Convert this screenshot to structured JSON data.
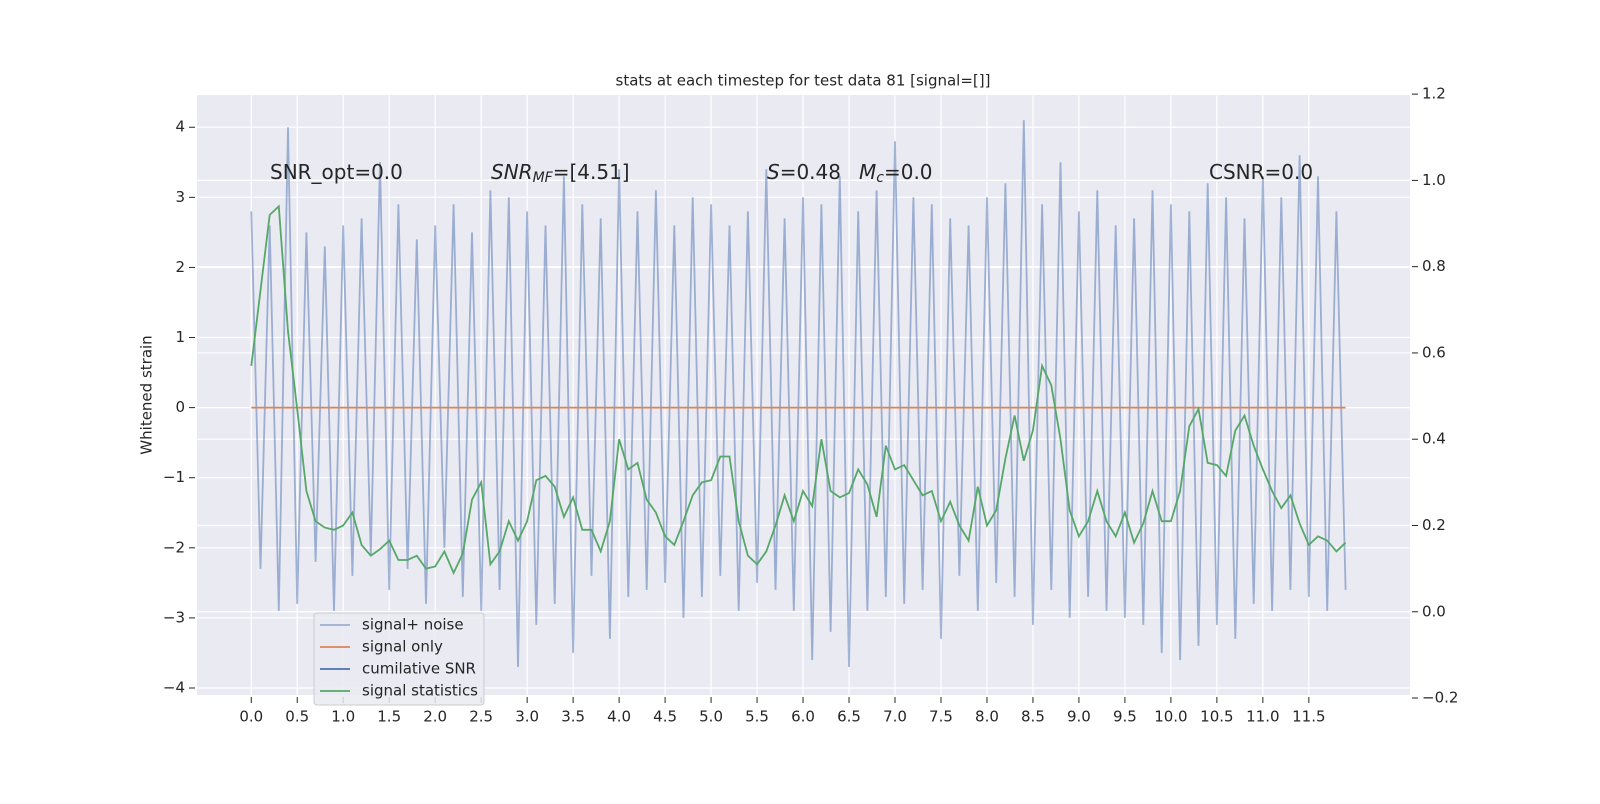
{
  "chart_data": {
    "type": "line",
    "title": "stats at each timestep for test data 81 [signal=[]]",
    "ylabel": "Whitened strain",
    "annotations": [
      {
        "main": "SNR_opt=0.0"
      },
      {
        "main": "SNR",
        "sub": "MF",
        "rest": "=[4.51]"
      },
      {
        "main": "S",
        "rest": "=0.48"
      },
      {
        "main": "M",
        "sub": "c",
        "rest": "=0.0"
      },
      {
        "main": "CSNR=0.0"
      }
    ],
    "x": [
      0,
      0.1,
      0.2,
      0.3,
      0.4,
      0.5,
      0.6,
      0.7,
      0.8,
      0.9,
      1,
      1.1,
      1.2,
      1.3,
      1.4,
      1.5,
      1.6,
      1.7,
      1.8,
      1.9,
      2,
      2.1,
      2.2,
      2.3,
      2.4,
      2.5,
      2.6,
      2.7,
      2.8,
      2.9,
      3,
      3.1,
      3.2,
      3.3,
      3.4,
      3.5,
      3.6,
      3.7,
      3.8,
      3.9,
      4,
      4.1,
      4.2,
      4.3,
      4.4,
      4.5,
      4.6,
      4.7,
      4.8,
      4.9,
      5,
      5.1,
      5.2,
      5.3,
      5.4,
      5.5,
      5.6,
      5.7,
      5.8,
      5.9,
      6,
      6.1,
      6.2,
      6.3,
      6.4,
      6.5,
      6.6,
      6.7,
      6.8,
      6.9,
      7,
      7.1,
      7.2,
      7.3,
      7.4,
      7.5,
      7.6,
      7.7,
      7.8,
      7.9,
      8,
      8.1,
      8.2,
      8.3,
      8.4,
      8.5,
      8.6,
      8.7,
      8.8,
      8.9,
      9,
      9.1,
      9.2,
      9.3,
      9.4,
      9.5,
      9.6,
      9.7,
      9.8,
      9.9,
      10,
      10.1,
      10.2,
      10.3,
      10.4,
      10.5,
      10.6,
      10.7,
      10.8,
      10.9,
      11,
      11.1,
      11.2,
      11.3,
      11.4,
      11.5,
      11.6,
      11.7,
      11.8,
      11.9
    ],
    "series": [
      {
        "name": "signal+ noise",
        "color": "#4c72b0",
        "alpha": 0.5,
        "values": [
          2.8,
          -2.3,
          2.6,
          -2.9,
          4.0,
          -2.8,
          2.5,
          -2.2,
          2.3,
          -2.9,
          2.6,
          -2.4,
          2.7,
          -2.1,
          3.5,
          -2.6,
          2.9,
          -2.3,
          2.4,
          -2.8,
          2.6,
          -2.0,
          2.9,
          -2.7,
          2.5,
          -2.9,
          3.1,
          -2.6,
          3.0,
          -3.7,
          2.8,
          -3.1,
          2.6,
          -2.8,
          3.3,
          -3.5,
          2.9,
          -2.4,
          2.7,
          -3.3,
          3.4,
          -2.7,
          2.8,
          -2.6,
          3.1,
          -2.5,
          2.6,
          -3.0,
          3.0,
          -2.7,
          2.9,
          -2.4,
          2.6,
          -2.9,
          2.8,
          -2.5,
          3.4,
          -2.6,
          2.7,
          -2.9,
          3.0,
          -3.6,
          2.9,
          -3.2,
          3.3,
          -3.7,
          2.8,
          -2.9,
          3.1,
          -2.7,
          3.8,
          -2.8,
          3.0,
          -2.6,
          2.9,
          -3.3,
          2.7,
          -2.4,
          2.6,
          -2.9,
          3.0,
          -2.5,
          3.2,
          -2.7,
          4.1,
          -3.1,
          2.9,
          -2.6,
          3.5,
          -3.0,
          2.8,
          -2.7,
          3.1,
          -2.9,
          2.6,
          -3.0,
          2.7,
          -3.1,
          3.1,
          -3.5,
          2.9,
          -3.6,
          2.8,
          -3.4,
          3.2,
          -3.1,
          3.0,
          -3.3,
          2.7,
          -2.8,
          3.3,
          -2.9,
          3.0,
          -2.6,
          3.6,
          -2.7,
          3.3,
          -2.9,
          2.8,
          -2.6
        ]
      },
      {
        "name": "signal only",
        "color": "#dd8452",
        "values": [
          0,
          0,
          0,
          0,
          0,
          0,
          0,
          0,
          0,
          0,
          0,
          0,
          0,
          0,
          0,
          0,
          0,
          0,
          0,
          0,
          0,
          0,
          0,
          0,
          0,
          0,
          0,
          0,
          0,
          0,
          0,
          0,
          0,
          0,
          0,
          0,
          0,
          0,
          0,
          0,
          0,
          0,
          0,
          0,
          0,
          0,
          0,
          0,
          0,
          0,
          0,
          0,
          0,
          0,
          0,
          0,
          0,
          0,
          0,
          0,
          0,
          0,
          0,
          0,
          0,
          0,
          0,
          0,
          0,
          0,
          0,
          0,
          0,
          0,
          0,
          0,
          0,
          0,
          0,
          0,
          0,
          0,
          0,
          0,
          0,
          0,
          0,
          0,
          0,
          0,
          0,
          0,
          0,
          0,
          0,
          0,
          0,
          0,
          0,
          0,
          0,
          0,
          0,
          0,
          0,
          0,
          0,
          0,
          0,
          0,
          0,
          0,
          0,
          0,
          0,
          0,
          0,
          0,
          0,
          0
        ]
      },
      {
        "name": "cumilative SNR",
        "color": "#4c72b0",
        "values": [
          null,
          null,
          null,
          null,
          null,
          null,
          null,
          null,
          null,
          null,
          null,
          null,
          null,
          null,
          null,
          null,
          null,
          null,
          null,
          null,
          null,
          null,
          null,
          null,
          null,
          null,
          null,
          null,
          null,
          null,
          null,
          null,
          null,
          null,
          null,
          null,
          null,
          null,
          null,
          null,
          null,
          null,
          null,
          null,
          null,
          null,
          null,
          null,
          null,
          null,
          null,
          null,
          null,
          null,
          null,
          null,
          null,
          null,
          null,
          null,
          null,
          null,
          null,
          null,
          null,
          null,
          null,
          null,
          null,
          null,
          null,
          null,
          null,
          null,
          null,
          null,
          null,
          null,
          null,
          null,
          null,
          null,
          null,
          null,
          null,
          null,
          null,
          null,
          null,
          null,
          null,
          null,
          null,
          null,
          null,
          null,
          null,
          null,
          null,
          null,
          null,
          null,
          null,
          null,
          null,
          null,
          null,
          null,
          null,
          null,
          null,
          null,
          null,
          null,
          null,
          null,
          null,
          null,
          null,
          null
        ]
      },
      {
        "name": "signal statistics",
        "color": "#55a868",
        "axis": "y2",
        "values": [
          0.57,
          0.745,
          0.92,
          0.94,
          0.65,
          0.47,
          0.28,
          0.21,
          0.195,
          0.19,
          0.2,
          0.23,
          0.155,
          0.13,
          0.145,
          0.165,
          0.12,
          0.12,
          0.13,
          0.1,
          0.105,
          0.14,
          0.09,
          0.135,
          0.26,
          0.3,
          0.11,
          0.14,
          0.21,
          0.165,
          0.21,
          0.305,
          0.315,
          0.29,
          0.22,
          0.265,
          0.19,
          0.19,
          0.14,
          0.21,
          0.4,
          0.33,
          0.345,
          0.26,
          0.23,
          0.175,
          0.155,
          0.21,
          0.27,
          0.3,
          0.305,
          0.36,
          0.36,
          0.21,
          0.13,
          0.11,
          0.14,
          0.2,
          0.27,
          0.21,
          0.28,
          0.245,
          0.4,
          0.28,
          0.265,
          0.275,
          0.33,
          0.295,
          0.22,
          0.385,
          0.33,
          0.34,
          0.305,
          0.27,
          0.28,
          0.21,
          0.255,
          0.2,
          0.165,
          0.29,
          0.2,
          0.235,
          0.355,
          0.455,
          0.35,
          0.42,
          0.57,
          0.525,
          0.4,
          0.235,
          0.175,
          0.21,
          0.28,
          0.21,
          0.175,
          0.23,
          0.16,
          0.205,
          0.28,
          0.21,
          0.21,
          0.28,
          0.43,
          0.47,
          0.345,
          0.34,
          0.315,
          0.42,
          0.455,
          0.385,
          0.33,
          0.28,
          0.24,
          0.27,
          0.205,
          0.155,
          0.175,
          0.165,
          0.14,
          0.16
        ]
      }
    ],
    "xlim": [
      -0.59,
      12.6
    ],
    "ylim": [
      -4.1,
      4.46
    ],
    "y2lim": [
      -0.193,
      1.198
    ],
    "xticks": [
      {
        "value": 0,
        "label": "0.0"
      },
      0.5,
      {
        "value": 1,
        "label": "1.0"
      },
      1.5,
      {
        "value": 2,
        "label": "2.0"
      },
      2.5,
      {
        "value": 3,
        "label": "3.0"
      },
      3.5,
      {
        "value": 4,
        "label": "4.0"
      },
      4.5,
      {
        "value": 5,
        "label": "5.0"
      },
      5.5,
      {
        "value": 6,
        "label": "6.0"
      },
      6.5,
      {
        "value": 7,
        "label": "7.0"
      },
      7.5,
      {
        "value": 8,
        "label": "8.0"
      },
      8.5,
      {
        "value": 9,
        "label": "9.0"
      },
      9.5,
      {
        "value": 10,
        "label": "10.0"
      },
      10.5,
      {
        "value": 11,
        "label": "11.0"
      },
      11.5
    ],
    "yticks": [
      {
        "value": -4,
        "label": "−4"
      },
      {
        "value": -3,
        "label": "−3"
      },
      {
        "value": -2,
        "label": "−2"
      },
      {
        "value": -1,
        "label": "−1"
      },
      0,
      1,
      2,
      3,
      4
    ],
    "y2ticks": [
      {
        "value": -0.2,
        "label": "−0.2"
      },
      {
        "value": 0,
        "label": "0.0"
      },
      0.2,
      0.4,
      0.6,
      0.8,
      {
        "value": 1,
        "label": "1.0"
      },
      1.2
    ],
    "grid": true,
    "legend": "lower left"
  }
}
